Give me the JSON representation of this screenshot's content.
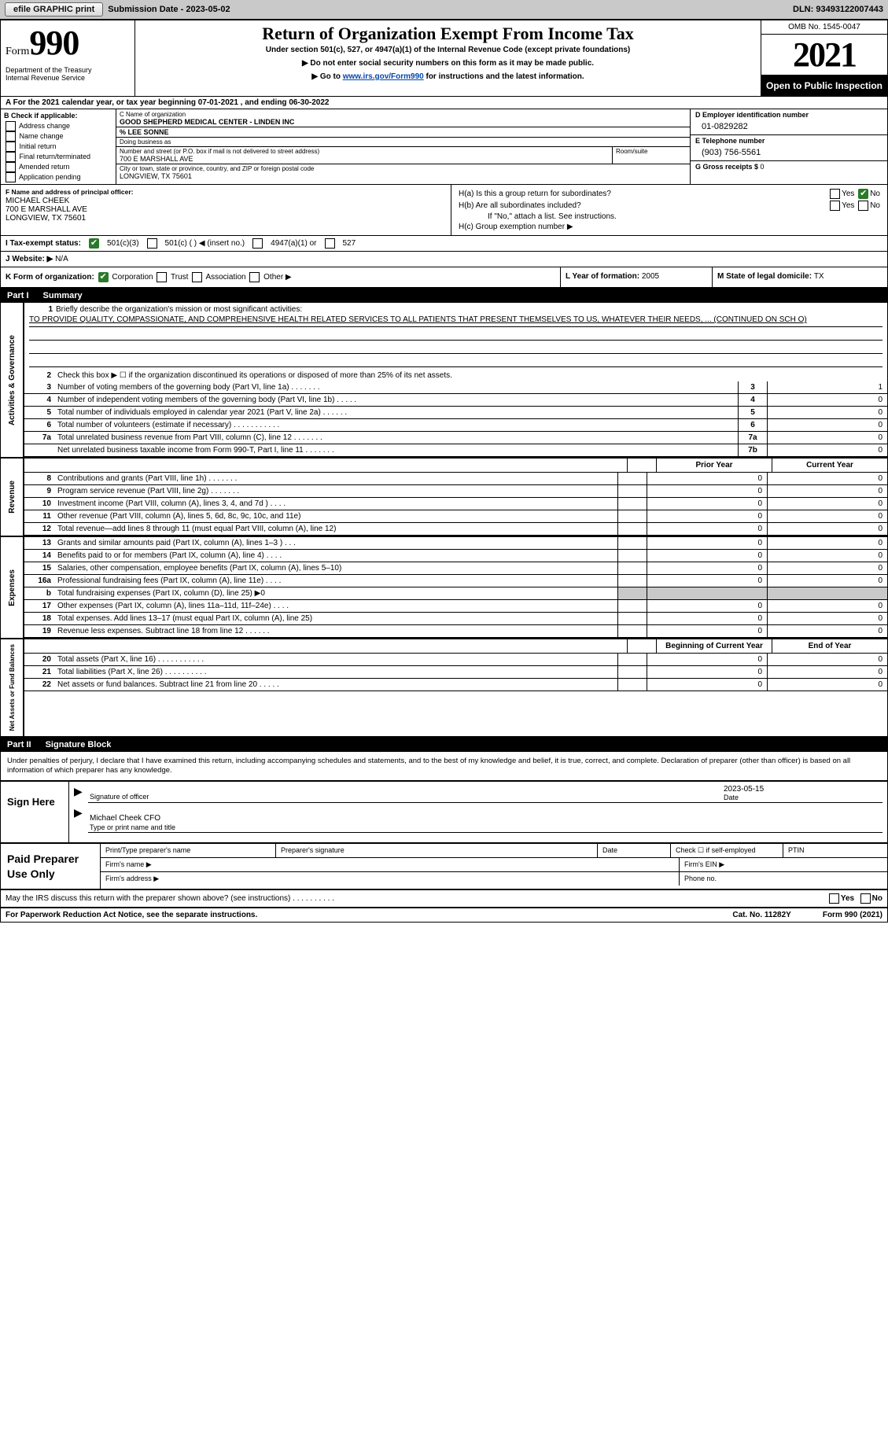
{
  "topbar": {
    "efile": "efile GRAPHIC print",
    "submission_label": "Submission Date - ",
    "submission_date": "2023-05-02",
    "dln_label": "DLN: ",
    "dln_value": "93493122007443"
  },
  "header": {
    "form_small": "Form",
    "form_big": "990",
    "dept": "Department of the Treasury\nInternal Revenue Service",
    "title": "Return of Organization Exempt From Income Tax",
    "sub1": "Under section 501(c), 527, or 4947(a)(1) of the Internal Revenue Code (except private foundations)",
    "sub2_prefix": "▶ Do not enter social security numbers on this form as it may be made public.",
    "sub3_prefix": "▶ Go to ",
    "sub3_link": "www.irs.gov/Form990",
    "sub3_suffix": " for instructions and the latest information.",
    "omb": "OMB No. 1545-0047",
    "year": "2021",
    "inspection": "Open to Public Inspection"
  },
  "periodA": "A For the 2021 calendar year, or tax year beginning 07-01-2021   , and ending 06-30-2022",
  "sectionB": {
    "title": "B Check if applicable:",
    "items": [
      "Address change",
      "Name change",
      "Initial return",
      "Final return/terminated",
      "Amended return",
      "Application pending"
    ],
    "c_name_lbl": "C Name of organization",
    "c_name_val": "GOOD SHEPHERD MEDICAL CENTER - LINDEN INC",
    "careof": "% LEE SONNE",
    "dba_lbl": "Doing business as",
    "street_lbl": "Number and street (or P.O. box if mail is not delivered to street address)",
    "street_val": "700 E MARSHALL AVE",
    "room_lbl": "Room/suite",
    "city_lbl": "City or town, state or province, country, and ZIP or foreign postal code",
    "city_val": "LONGVIEW, TX  75601",
    "d_ein_lbl": "D Employer identification number",
    "d_ein_val": "01-0829282",
    "e_tel_lbl": "E Telephone number",
    "e_tel_val": "(903) 756-5561",
    "g_gross_lbl": "G Gross receipts $ ",
    "g_gross_val": "0"
  },
  "rowF": {
    "f_lbl": "F Name and address of principal officer:",
    "f_val": "MICHAEL CHEEK\n700 E MARSHALL AVE\nLONGVIEW, TX  75601",
    "ha": "H(a)  Is this a group return for subordinates?",
    "hb": "H(b)  Are all subordinates included?",
    "hnote": "If \"No,\" attach a list. See instructions.",
    "hc": "H(c)  Group exemption number ▶",
    "yes": "Yes",
    "no": "No"
  },
  "rowI": {
    "label": "I  Tax-exempt status:",
    "c3": "501(c)(3)",
    "c_blank": "501(c) (  ) ◀ (insert no.)",
    "c4947": "4947(a)(1) or",
    "c527": "527"
  },
  "rowJ": {
    "label": "J  Website: ▶  ",
    "val": "N/A"
  },
  "rowK": {
    "k_label": "K Form of organization:",
    "corp": "Corporation",
    "trust": "Trust",
    "assoc": "Association",
    "other": "Other ▶",
    "l_label": "L Year of formation: ",
    "l_val": "2005",
    "m_label": "M State of legal domicile: ",
    "m_val": "TX"
  },
  "part1": {
    "pt": "Part I",
    "title": "Summary"
  },
  "summary": {
    "line1_lbl": "Briefly describe the organization's mission or most significant activities:",
    "line1_txt": "TO PROVIDE QUALITY, COMPASSIONATE, AND COMPREHENSIVE HEALTH RELATED SERVICES TO ALL PATIENTS THAT PRESENT THEMSELVES TO US, WHATEVER THEIR NEEDS, ... (CONTINUED ON SCH O)",
    "line2": "Check this box ▶ ☐ if the organization discontinued its operations or disposed of more than 25% of its net assets.",
    "lines_top": [
      {
        "n": "3",
        "t": "Number of voting members of the governing body (Part VI, line 1a)   .    .    .    .    .    .    .",
        "box": "3",
        "v": "1"
      },
      {
        "n": "4",
        "t": "Number of independent voting members of the governing body (Part VI, line 1b)   .    .    .    .    .",
        "box": "4",
        "v": "0"
      },
      {
        "n": "5",
        "t": "Total number of individuals employed in calendar year 2021 (Part V, line 2a)   .    .    .    .    .    .",
        "box": "5",
        "v": "0"
      },
      {
        "n": "6",
        "t": "Total number of volunteers (estimate if necessary)    .    .    .    .    .    .    .    .    .    .    .",
        "box": "6",
        "v": "0"
      },
      {
        "n": "7a",
        "t": "Total unrelated business revenue from Part VIII, column (C), line 12   .    .    .    .    .    .    .",
        "box": "7a",
        "v": "0"
      },
      {
        "n": "",
        "t": "Net unrelated business taxable income from Form 990-T, Part I, line 11   .    .    .    .    .    .    .",
        "box": "7b",
        "v": "0"
      }
    ],
    "prior_hdr": "Prior Year",
    "curr_hdr": "Current Year",
    "revenue": [
      {
        "n": "8",
        "t": "Contributions and grants (Part VIII, line 1h)   .    .    .    .    .    .    .",
        "p": "0",
        "c": "0"
      },
      {
        "n": "9",
        "t": "Program service revenue (Part VIII, line 2g)   .    .    .    .    .    .    .",
        "p": "0",
        "c": "0"
      },
      {
        "n": "10",
        "t": "Investment income (Part VIII, column (A), lines 3, 4, and 7d )   .    .    .    .",
        "p": "0",
        "c": "0"
      },
      {
        "n": "11",
        "t": "Other revenue (Part VIII, column (A), lines 5, 6d, 8c, 9c, 10c, and 11e)",
        "p": "0",
        "c": "0"
      },
      {
        "n": "12",
        "t": "Total revenue—add lines 8 through 11 (must equal Part VIII, column (A), line 12)",
        "p": "0",
        "c": "0"
      }
    ],
    "expenses": [
      {
        "n": "13",
        "t": "Grants and similar amounts paid (Part IX, column (A), lines 1–3 )   .    .    .",
        "p": "0",
        "c": "0"
      },
      {
        "n": "14",
        "t": "Benefits paid to or for members (Part IX, column (A), line 4)   .    .    .    .",
        "p": "0",
        "c": "0"
      },
      {
        "n": "15",
        "t": "Salaries, other compensation, employee benefits (Part IX, column (A), lines 5–10)",
        "p": "0",
        "c": "0"
      },
      {
        "n": "16a",
        "t": "Professional fundraising fees (Part IX, column (A), line 11e)   .    .    .    .",
        "p": "0",
        "c": "0"
      },
      {
        "n": "b",
        "t": "Total fundraising expenses (Part IX, column (D), line 25) ▶0",
        "p": "",
        "c": "",
        "shade": true
      },
      {
        "n": "17",
        "t": "Other expenses (Part IX, column (A), lines 11a–11d, 11f–24e)   .    .    .    .",
        "p": "0",
        "c": "0"
      },
      {
        "n": "18",
        "t": "Total expenses. Add lines 13–17 (must equal Part IX, column (A), line 25)",
        "p": "0",
        "c": "0"
      },
      {
        "n": "19",
        "t": "Revenue less expenses. Subtract line 18 from line 12    .    .    .    .    .    .",
        "p": "0",
        "c": "0"
      }
    ],
    "begin_hdr": "Beginning of Current Year",
    "end_hdr": "End of Year",
    "netassets": [
      {
        "n": "20",
        "t": "Total assets (Part X, line 16)  .    .    .    .    .    .    .    .    .    .    .",
        "p": "0",
        "c": "0"
      },
      {
        "n": "21",
        "t": "Total liabilities (Part X, line 26)   .    .    .    .    .    .    .    .    .    .",
        "p": "0",
        "c": "0"
      },
      {
        "n": "22",
        "t": "Net assets or fund balances. Subtract line 21 from line 20    .    .    .    .    .",
        "p": "0",
        "c": "0"
      }
    ],
    "side_act": "Activities & Governance",
    "side_rev": "Revenue",
    "side_exp": "Expenses",
    "side_net": "Net Assets or Fund Balances"
  },
  "part2": {
    "pt": "Part II",
    "title": "Signature Block"
  },
  "declaration": "Under penalties of perjury, I declare that I have examined this return, including accompanying schedules and statements, and to the best of my knowledge and belief, it is true, correct, and complete. Declaration of preparer (other than officer) is based on all information of which preparer has any knowledge.",
  "sign": {
    "here": "Sign Here",
    "sig_officer": "Signature of officer",
    "date_val": "2023-05-15",
    "date_lbl": "Date",
    "name_val": "Michael Cheek CFO",
    "name_lbl": "Type or print name and title"
  },
  "paid": {
    "label": "Paid Preparer Use Only",
    "c_print": "Print/Type preparer's name",
    "c_sig": "Preparer's signature",
    "c_date": "Date",
    "c_self": "Check ☐ if self-employed",
    "c_ptin": "PTIN",
    "firm_name": "Firm's name  ▶",
    "firm_ein": "Firm's EIN ▶",
    "firm_addr": "Firm's address ▶",
    "phone": "Phone no."
  },
  "may": {
    "txt": "May the IRS discuss this return with the preparer shown above? (see instructions)   .    .    .    .    .    .    .    .    .    .",
    "yes": "Yes",
    "no": "No"
  },
  "footer": {
    "left": "For Paperwork Reduction Act Notice, see the separate instructions.",
    "mid": "Cat. No. 11282Y",
    "right": "Form 990 (2021)"
  }
}
